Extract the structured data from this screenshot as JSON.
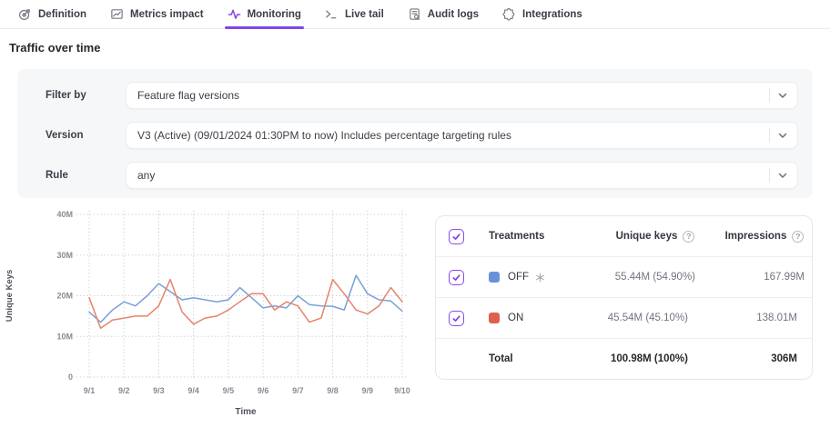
{
  "tabs": [
    {
      "label": "Definition",
      "icon": "target-icon",
      "active": false
    },
    {
      "label": "Metrics impact",
      "icon": "metrics-chart-icon",
      "active": false
    },
    {
      "label": "Monitoring",
      "icon": "activity-pulse-icon",
      "active": true
    },
    {
      "label": "Live tail",
      "icon": "terminal-icon",
      "active": false
    },
    {
      "label": "Audit logs",
      "icon": "audit-document-icon",
      "active": false
    },
    {
      "label": "Integrations",
      "icon": "puzzle-icon",
      "active": false
    }
  ],
  "section_title": "Traffic over time",
  "filters": {
    "filter_by": {
      "label": "Filter by",
      "value": "Feature flag versions"
    },
    "version": {
      "label": "Version",
      "value": "V3 (Active) (09/01/2024 01:30PM to now) Includes percentage targeting rules"
    },
    "rule": {
      "label": "Rule",
      "value": "any"
    }
  },
  "chart_data": {
    "type": "line",
    "xlabel": "Time",
    "ylabel": "Unique Keys",
    "unit": "millions",
    "ylim": [
      0,
      40
    ],
    "y_ticks": [
      0,
      10,
      20,
      30,
      40
    ],
    "y_tick_labels": [
      "0",
      "10M",
      "20M",
      "30M",
      "40M"
    ],
    "x_labels": [
      "9/1",
      "9/2",
      "9/3",
      "9/4",
      "9/5",
      "9/6",
      "9/7",
      "9/8",
      "9/9",
      "9/10"
    ],
    "grid": "dotted",
    "x": [
      0,
      0.33,
      0.67,
      1,
      1.33,
      1.67,
      2,
      2.33,
      2.67,
      3,
      3.33,
      3.67,
      4,
      4.33,
      4.67,
      5,
      5.33,
      5.67,
      6,
      6.33,
      6.67,
      7,
      7.33,
      7.67,
      8,
      8.33,
      8.67,
      9
    ],
    "series": [
      {
        "name": "OFF",
        "color": "#7b9fd8",
        "values": [
          16,
          13.5,
          16.5,
          18.5,
          17.5,
          20,
          23,
          21,
          19,
          19.5,
          19,
          18.5,
          19,
          22,
          19.5,
          17,
          17.5,
          17,
          20,
          17.8,
          17.5,
          17.4,
          16.5,
          25,
          20.5,
          19,
          18.7,
          16.2
        ]
      },
      {
        "name": "ON",
        "color": "#e5846c",
        "values": [
          19.5,
          12,
          14,
          14.5,
          15,
          15,
          17.5,
          24,
          16,
          13,
          14.5,
          15,
          16.5,
          18.5,
          20.5,
          20.5,
          16.5,
          18.5,
          17.5,
          13.5,
          14.5,
          24,
          20.5,
          16.5,
          15.5,
          17.5,
          22,
          18.5
        ]
      }
    ]
  },
  "treatments_table": {
    "headers": {
      "treatments": "Treatments",
      "unique_keys": "Unique keys",
      "impressions": "Impressions"
    },
    "help_glyph": "?",
    "rows": [
      {
        "name": "OFF",
        "checked": true,
        "is_default": true,
        "swatch_color": "#6991db",
        "unique_keys": "55.44M (54.90%)",
        "impressions": "167.99M"
      },
      {
        "name": "ON",
        "checked": true,
        "is_default": false,
        "swatch_color": "#df604b",
        "unique_keys": "45.54M (45.10%)",
        "impressions": "138.01M"
      }
    ],
    "total": {
      "label": "Total",
      "unique_keys": "100.98M (100%)",
      "impressions": "306M"
    }
  },
  "colors": {
    "accent_purple": "#8247e5",
    "line_blue": "#7b9fd8",
    "line_red": "#e5846c",
    "grid_gray": "#c8cbd2",
    "panel_bg": "#f6f7f9"
  }
}
